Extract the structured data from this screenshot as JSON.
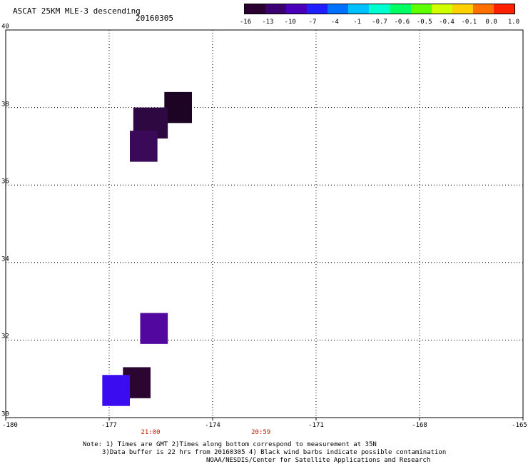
{
  "title": "ASCAT 25KM MLE-3 descending",
  "date": "20160305",
  "colorbar": {
    "ticks": [
      "-16",
      "-13",
      "-10",
      "-7",
      "-4",
      "-1",
      "-0.7",
      "-0.6",
      "-0.5",
      "-0.4",
      "-0.1",
      "0.0",
      "1.0"
    ],
    "colors": [
      "#2a0030",
      "#3a0070",
      "#4a00b8",
      "#2020ff",
      "#0070ff",
      "#00c0ff",
      "#00ffd0",
      "#00ff60",
      "#60ff00",
      "#d0ff00",
      "#ffd000",
      "#ff7000",
      "#ff2000"
    ]
  },
  "chart_data": {
    "type": "heatmap",
    "title": "ASCAT 25KM MLE-3 descending",
    "date": "20160305",
    "xlim": [
      -180,
      -165
    ],
    "ylim": [
      30,
      40
    ],
    "x_ticks": [
      "-180",
      "-177",
      "-174",
      "-171",
      "-168",
      "-165"
    ],
    "y_ticks": [
      "40",
      "38",
      "36",
      "34",
      "32",
      "30"
    ],
    "grid": true,
    "cells": [
      {
        "lon_min": -175.4,
        "lon_max": -174.6,
        "lat_min": 37.6,
        "lat_max": 38.4,
        "value": -16,
        "color": "#1e0424"
      },
      {
        "lon_min": -176.3,
        "lon_max": -175.3,
        "lat_min": 37.2,
        "lat_max": 38.0,
        "value": -14,
        "color": "#2e0840"
      },
      {
        "lon_min": -176.4,
        "lon_max": -175.6,
        "lat_min": 36.6,
        "lat_max": 37.4,
        "value": -13,
        "color": "#3a0a58"
      },
      {
        "lon_min": -176.1,
        "lon_max": -175.3,
        "lat_min": 31.9,
        "lat_max": 32.7,
        "value": -11,
        "color": "#52089e"
      },
      {
        "lon_min": -176.6,
        "lon_max": -175.8,
        "lat_min": 30.5,
        "lat_max": 31.3,
        "value": -15,
        "color": "#2a0630"
      },
      {
        "lon_min": -177.2,
        "lon_max": -176.4,
        "lat_min": 30.3,
        "lat_max": 31.1,
        "value": -8,
        "color": "#3c0cf0"
      }
    ],
    "time_labels": [
      {
        "lon": -175.8,
        "text": "21:00"
      },
      {
        "lon": -172.6,
        "text": "20:59"
      }
    ]
  },
  "notes": {
    "line1": "Note: 1) Times are GMT 2)Times along bottom correspond to measurement at 35N",
    "line2": "3)Data buffer is 22 hrs from 20160305 4) Black wind barbs indicate possible contamination",
    "line3": "NOAA/NESDIS/Center for Satellite Applications and Research"
  }
}
